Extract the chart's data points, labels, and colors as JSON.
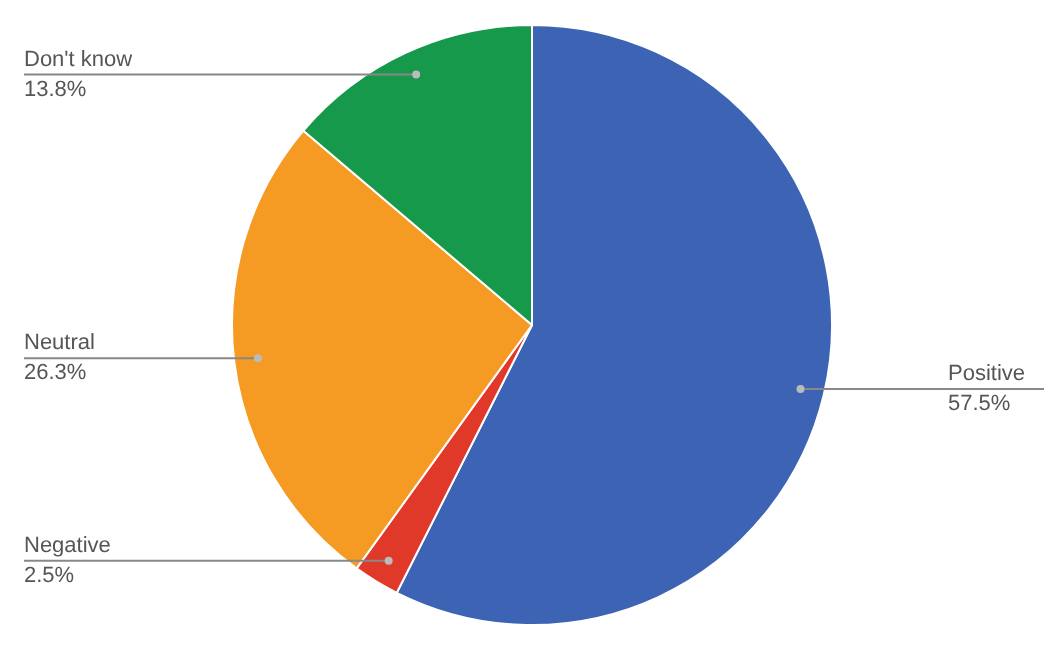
{
  "chart_data": {
    "type": "pie",
    "categories": [
      "Positive",
      "Negative",
      "Neutral",
      "Don't know"
    ],
    "values": [
      57.5,
      2.5,
      26.3,
      13.8
    ],
    "value_labels": [
      "57.5%",
      "2.5%",
      "26.3%",
      "13.8%"
    ],
    "colors": [
      "#3d64b4",
      "#e0392a",
      "#f59a23",
      "#16994a"
    ],
    "legend": false
  }
}
